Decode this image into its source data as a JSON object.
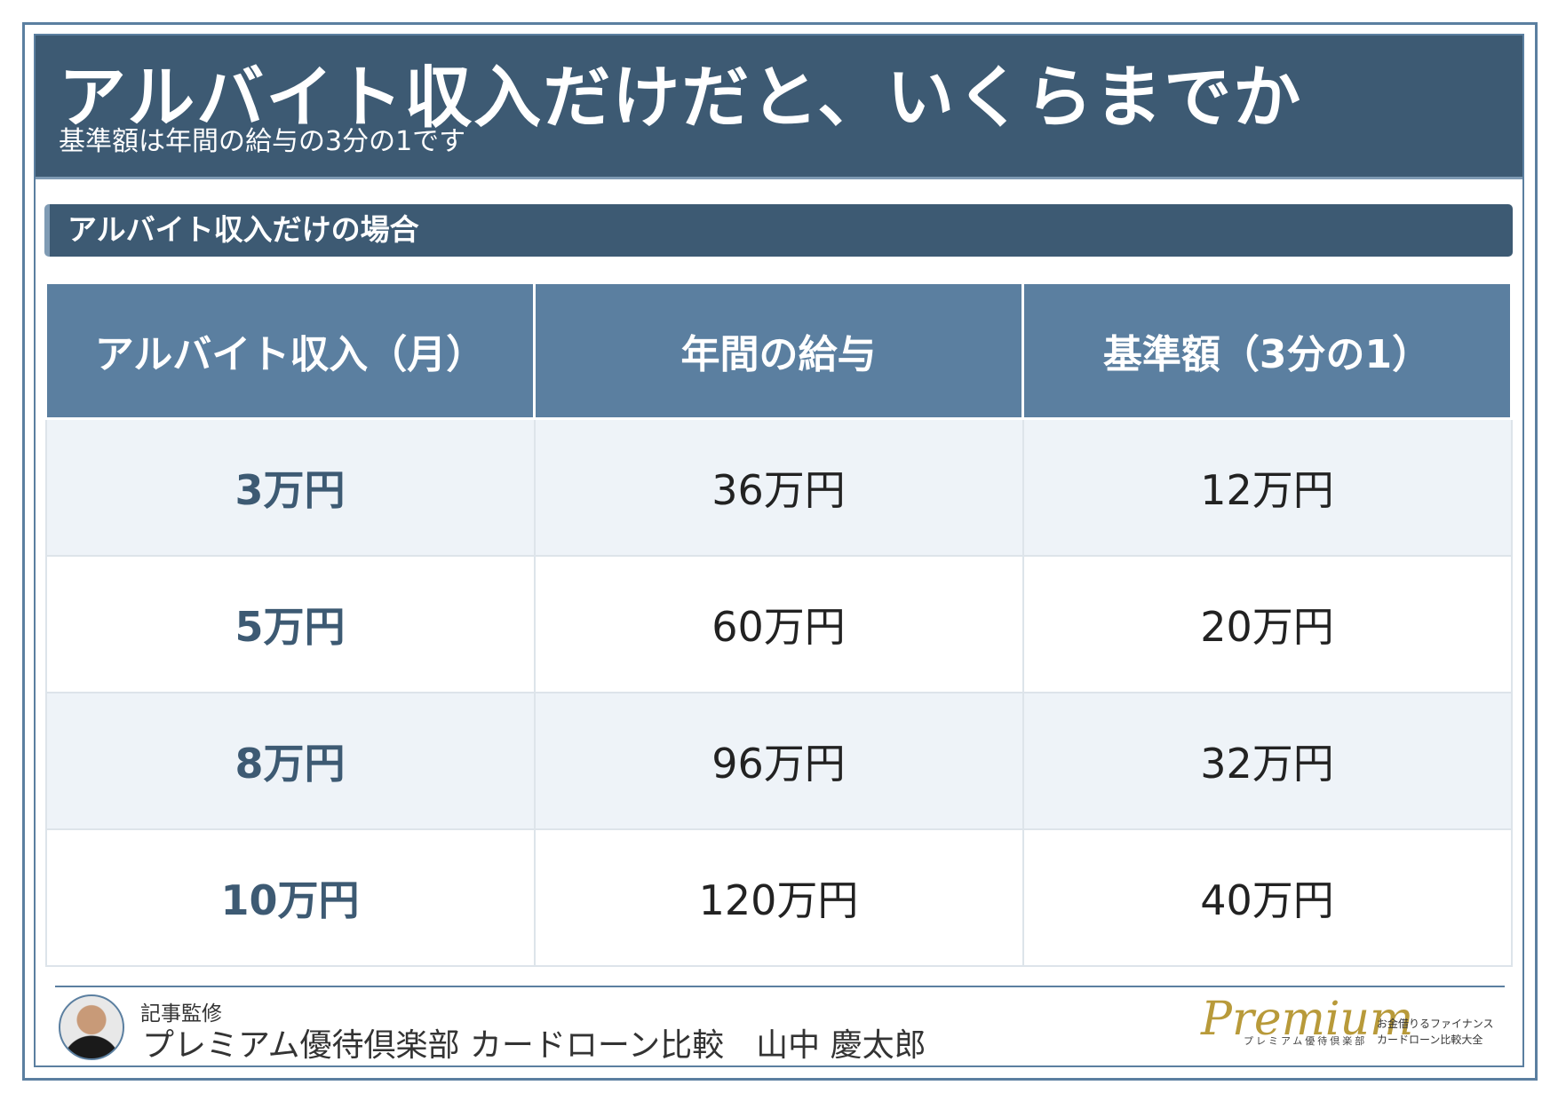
{
  "header": {
    "title": "アルバイト収入だけだと、いくらまでか",
    "subtitle": "基準額は年間の給与の3分の1です"
  },
  "section_title": "アルバイト収入だけの場合",
  "table": {
    "columns": [
      "アルバイト収入（月）",
      "年間の給与",
      "基準額（3分の1）"
    ],
    "rows": [
      [
        "3万円",
        "36万円",
        "12万円"
      ],
      [
        "5万円",
        "60万円",
        "20万円"
      ],
      [
        "8万円",
        "96万円",
        "32万円"
      ],
      [
        "10万円",
        "120万円",
        "40万円"
      ]
    ]
  },
  "footer": {
    "label": "記事監修",
    "name": "プレミアム優待倶楽部 カードローン比較　山中 慶太郎"
  },
  "logo": {
    "mark": "Premium",
    "sub": "プレミアム優待倶楽部",
    "line1": "お金借りるファイナンス",
    "line2": "カードローン比較大全"
  }
}
